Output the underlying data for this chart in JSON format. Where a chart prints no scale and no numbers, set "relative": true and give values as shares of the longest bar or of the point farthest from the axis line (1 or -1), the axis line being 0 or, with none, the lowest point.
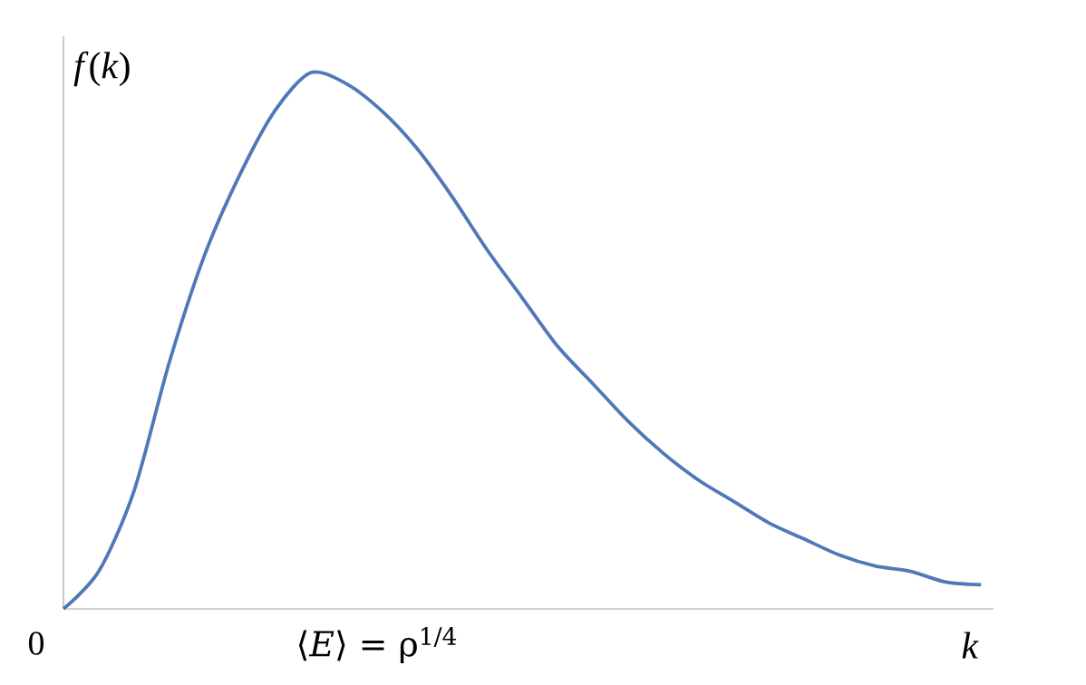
{
  "chart_data": {
    "type": "line",
    "relative": true,
    "xlabel": "*k*",
    "ylabel": "*f*(*k*)",
    "annotations": [
      "0",
      "⟨*E*⟩ = ρ$^{1/4}$"
    ],
    "categories": [
      null,
      null,
      null,
      null,
      null,
      null,
      null,
      null,
      null,
      null,
      null,
      null,
      null,
      null,
      null,
      null,
      null,
      null,
      null,
      null,
      null,
      null,
      null,
      null,
      null,
      null,
      null
    ],
    "series": [
      {
        "color": "#5078b8",
        "values": [
          0,
          0.07,
          0.22,
          0.46,
          0.66,
          0.81,
          0.93,
          1.0,
          0.98,
          0.93,
          0.86,
          0.77,
          0.67,
          0.58,
          0.49,
          0.42,
          0.35,
          0.29,
          0.24,
          0.2,
          0.16,
          0.13,
          0.1,
          0.08,
          0.07,
          0.05,
          0.045
        ]
      }
    ],
    "marker": "none",
    "line_style": "solid"
  }
}
